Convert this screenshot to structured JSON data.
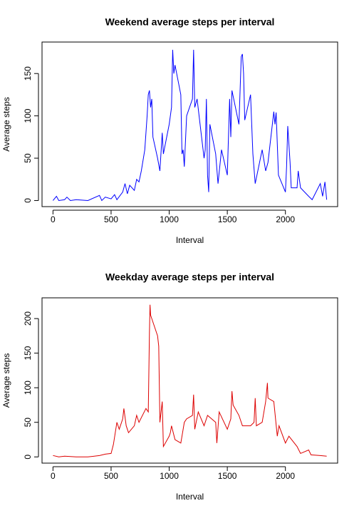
{
  "chart_data": [
    {
      "type": "line",
      "title": "Weekend average steps per interval",
      "xlabel": "Interval",
      "ylabel": "Average steps",
      "x": [
        0,
        30,
        50,
        100,
        120,
        150,
        200,
        300,
        400,
        420,
        450,
        500,
        530,
        550,
        600,
        620,
        640,
        660,
        700,
        720,
        740,
        760,
        790,
        810,
        820,
        830,
        840,
        850,
        860,
        900,
        920,
        940,
        950,
        1000,
        1020,
        1030,
        1040,
        1050,
        1100,
        1110,
        1120,
        1130,
        1150,
        1200,
        1210,
        1220,
        1240,
        1300,
        1310,
        1320,
        1330,
        1340,
        1350,
        1400,
        1420,
        1450,
        1500,
        1520,
        1530,
        1540,
        1600,
        1620,
        1630,
        1640,
        1650,
        1700,
        1720,
        1740,
        1800,
        1830,
        1850,
        1900,
        1910,
        1920,
        1940,
        2000,
        2010,
        2020,
        2040,
        2050,
        2100,
        2110,
        2130,
        2200,
        2230,
        2300,
        2320,
        2340,
        2355
      ],
      "values": [
        0,
        5,
        0,
        1,
        4,
        0,
        1,
        0,
        6,
        0,
        4,
        2,
        7,
        1,
        10,
        20,
        8,
        18,
        12,
        25,
        22,
        35,
        60,
        100,
        125,
        130,
        110,
        120,
        75,
        50,
        35,
        80,
        55,
        90,
        110,
        178,
        150,
        160,
        125,
        55,
        60,
        40,
        100,
        120,
        178,
        110,
        120,
        50,
        60,
        120,
        30,
        10,
        90,
        55,
        20,
        60,
        30,
        120,
        75,
        130,
        90,
        170,
        173,
        150,
        95,
        125,
        55,
        20,
        60,
        35,
        45,
        105,
        90,
        104,
        30,
        10,
        40,
        88,
        45,
        15,
        15,
        35,
        15,
        5,
        1,
        20,
        5,
        22,
        1
      ],
      "color": "#0000ff",
      "xlim": [
        -94.2,
        2449.2
      ],
      "ylim": [
        -7.2,
        187.2
      ],
      "xticks": [
        0,
        500,
        1000,
        1500,
        2000
      ],
      "yticks": [
        0,
        50,
        100,
        150
      ]
    },
    {
      "type": "line",
      "title": "Weekday average steps per interval",
      "xlabel": "Interval",
      "ylabel": "Average steps",
      "x": [
        0,
        50,
        100,
        200,
        300,
        400,
        450,
        500,
        520,
        550,
        570,
        600,
        610,
        630,
        650,
        700,
        720,
        740,
        800,
        820,
        830,
        835,
        840,
        850,
        900,
        910,
        920,
        940,
        950,
        1000,
        1010,
        1020,
        1050,
        1100,
        1130,
        1150,
        1200,
        1210,
        1220,
        1250,
        1300,
        1330,
        1400,
        1410,
        1430,
        1500,
        1530,
        1540,
        1550,
        1600,
        1630,
        1700,
        1730,
        1740,
        1750,
        1800,
        1830,
        1845,
        1850,
        1900,
        1930,
        1945,
        2000,
        2030,
        2100,
        2130,
        2200,
        2220,
        2300,
        2355
      ],
      "values": [
        2,
        0,
        1,
        0,
        0,
        2,
        4,
        5,
        18,
        50,
        40,
        55,
        70,
        45,
        35,
        45,
        60,
        50,
        70,
        65,
        180,
        220,
        205,
        200,
        175,
        160,
        50,
        80,
        15,
        30,
        35,
        45,
        25,
        20,
        50,
        55,
        60,
        90,
        40,
        65,
        45,
        60,
        50,
        20,
        65,
        40,
        55,
        95,
        75,
        60,
        45,
        45,
        50,
        85,
        45,
        50,
        80,
        107,
        85,
        80,
        30,
        45,
        20,
        30,
        15,
        5,
        10,
        3,
        2,
        1
      ],
      "color": "#dd0000",
      "xlim": [
        -94.2,
        2449.2
      ],
      "ylim": [
        -9,
        230
      ],
      "xticks": [
        0,
        500,
        1000,
        1500,
        2000
      ],
      "yticks": [
        0,
        50,
        100,
        150,
        200
      ]
    }
  ]
}
